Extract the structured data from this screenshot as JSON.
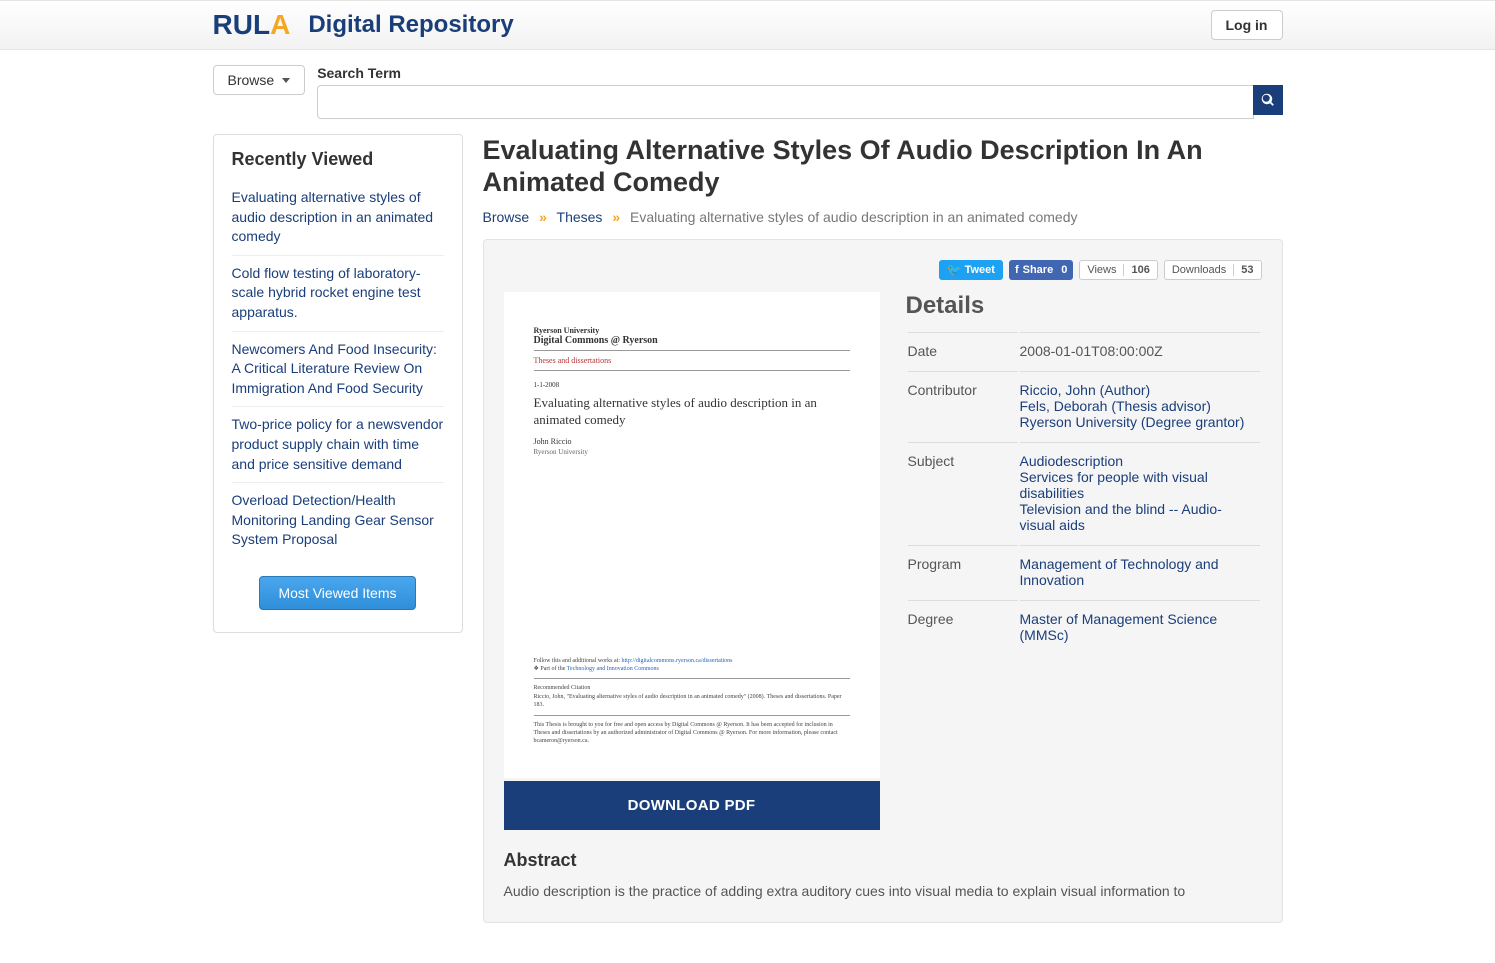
{
  "header": {
    "logo_parts": [
      "R",
      "U",
      "L",
      "A"
    ],
    "site_title": "Digital Repository",
    "login_label": "Log in"
  },
  "search": {
    "browse_label": "Browse",
    "search_label": "Search Term",
    "placeholder": ""
  },
  "sidebar": {
    "title": "Recently Viewed",
    "items": [
      "Evaluating alternative styles of audio description in an animated comedy",
      "Cold flow testing of laboratory-scale hybrid rocket engine test apparatus.",
      "Newcomers And Food Insecurity: A Critical Literature Review On Immigration And Food Security",
      "Two-price policy for a newsvendor product supply chain with time and price sensitive demand",
      "Overload Detection/Health Monitoring Landing Gear Sensor System Proposal"
    ],
    "most_viewed_label": "Most Viewed Items"
  },
  "page": {
    "title": "Evaluating Alternative Styles Of Audio Description In An Animated Comedy",
    "breadcrumb": {
      "root": "Browse",
      "section": "Theses",
      "current": "Evaluating alternative styles of audio description in an animated comedy"
    }
  },
  "social": {
    "tweet_label": "Tweet",
    "fb_share_label": "Share",
    "fb_share_count": "0",
    "views_label": "Views",
    "views_count": "106",
    "downloads_label": "Downloads",
    "downloads_count": "53"
  },
  "preview": {
    "university": "Ryerson University",
    "commons": "Digital Commons @ Ryerson",
    "collection": "Theses and dissertations",
    "date": "1-1-2008",
    "title": "Evaluating alternative styles of audio description in an animated comedy",
    "author": "John Riccio",
    "institution": "Ryerson University",
    "follow_text": "Follow this and additional works at:",
    "follow_link": "http://digitalcommons.ryerson.ca/dissertations",
    "part_of_text": "Part of the",
    "part_of_link": "Technology and Innovation Commons",
    "rec_cite_label": "Recommended Citation",
    "rec_cite_text": "Riccio, John, \"Evaluating alternative styles of audio description in an animated comedy\" (2008). Theses and dissertations. Paper 183.",
    "disclaimer": "This Thesis is brought to you for free and open access by Digital Commons @ Ryerson. It has been accepted for inclusion in Theses and dissertations by an authorized administrator of Digital Commons @ Ryerson. For more information, please contact bcameron@ryerson.ca."
  },
  "download_label": "DOWNLOAD PDF",
  "details": {
    "heading": "Details",
    "rows": [
      {
        "label": "Date",
        "type": "static",
        "values": [
          "2008-01-01T08:00:00Z"
        ]
      },
      {
        "label": "Contributor",
        "type": "link",
        "values": [
          "Riccio, John (Author)",
          "Fels, Deborah (Thesis advisor)",
          "Ryerson University (Degree grantor)"
        ]
      },
      {
        "label": "Subject",
        "type": "link",
        "values": [
          "Audiodescription",
          "Services for people with visual disabilities",
          "Television and the blind -- Audio-visual aids"
        ]
      },
      {
        "label": "Program",
        "type": "link",
        "values": [
          "Management of Technology and Innovation"
        ]
      },
      {
        "label": "Degree",
        "type": "link",
        "values": [
          "Master of Management Science (MMSc)"
        ]
      }
    ]
  },
  "abstract": {
    "heading": "Abstract",
    "text": "Audio description is the practice of adding extra auditory cues into visual media to explain visual information to"
  },
  "colors": {
    "brand_blue": "#1a3e7a",
    "accent_orange": "#f5a623",
    "twitter": "#1da1f2",
    "facebook": "#4267b2",
    "panel_bg": "#f5f5f5"
  }
}
